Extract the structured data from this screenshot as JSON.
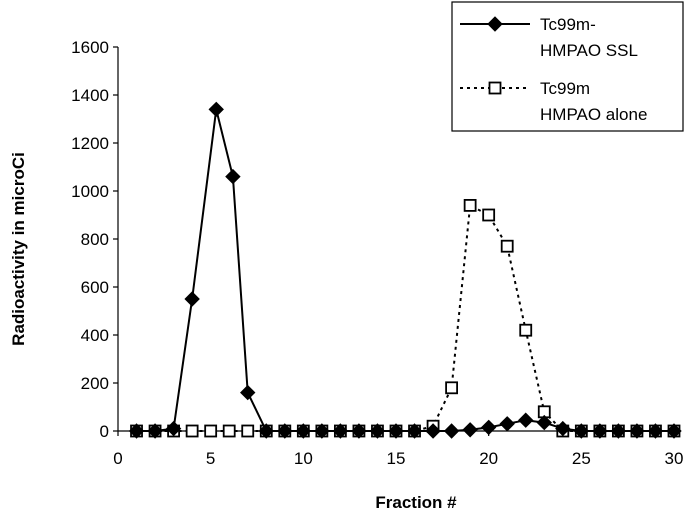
{
  "chart_data": {
    "type": "line",
    "title": "",
    "xlabel": "Fraction #",
    "ylabel": "Radioactivity in microCi",
    "xlim": [
      0,
      30
    ],
    "ylim": [
      0,
      1600
    ],
    "xticks": [
      0,
      5,
      10,
      15,
      20,
      25,
      30
    ],
    "yticks": [
      0,
      200,
      400,
      600,
      800,
      1000,
      1200,
      1400,
      1600
    ],
    "grid": false,
    "legend_position": "top-right",
    "series": [
      {
        "name_lines": [
          "Tc99m-",
          "HMPAO SSL"
        ],
        "marker": "filled-diamond",
        "line_style": "solid",
        "color": "#000000",
        "points": [
          [
            1,
            0
          ],
          [
            2,
            0
          ],
          [
            3,
            10
          ],
          [
            4,
            550
          ],
          [
            5.3,
            1340
          ],
          [
            6.2,
            1060
          ],
          [
            7,
            160
          ],
          [
            8,
            0
          ],
          [
            9,
            0
          ],
          [
            10,
            0
          ],
          [
            11,
            0
          ],
          [
            12,
            0
          ],
          [
            13,
            0
          ],
          [
            14,
            0
          ],
          [
            15,
            0
          ],
          [
            16,
            0
          ],
          [
            17,
            0
          ],
          [
            18,
            0
          ],
          [
            19,
            5
          ],
          [
            20,
            15
          ],
          [
            21,
            30
          ],
          [
            22,
            45
          ],
          [
            23,
            35
          ],
          [
            24,
            10
          ],
          [
            25,
            0
          ],
          [
            26,
            0
          ],
          [
            27,
            0
          ],
          [
            28,
            0
          ],
          [
            29,
            0
          ],
          [
            30,
            0
          ]
        ]
      },
      {
        "name_lines": [
          "Tc99m",
          "HMPAO alone"
        ],
        "marker": "open-square",
        "line_style": "dotted",
        "color": "#000000",
        "points": [
          [
            1,
            0
          ],
          [
            2,
            0
          ],
          [
            3,
            0
          ],
          [
            4,
            0
          ],
          [
            5,
            0
          ],
          [
            6,
            0
          ],
          [
            7,
            0
          ],
          [
            8,
            0
          ],
          [
            9,
            0
          ],
          [
            10,
            0
          ],
          [
            11,
            0
          ],
          [
            12,
            0
          ],
          [
            13,
            0
          ],
          [
            14,
            0
          ],
          [
            15,
            0
          ],
          [
            16,
            0
          ],
          [
            17,
            20
          ],
          [
            18,
            180
          ],
          [
            19,
            940
          ],
          [
            20,
            900
          ],
          [
            21,
            770
          ],
          [
            22,
            420
          ],
          [
            23,
            80
          ],
          [
            24,
            0
          ],
          [
            25,
            0
          ],
          [
            26,
            0
          ],
          [
            27,
            0
          ],
          [
            28,
            0
          ],
          [
            29,
            0
          ],
          [
            30,
            0
          ]
        ]
      }
    ]
  }
}
